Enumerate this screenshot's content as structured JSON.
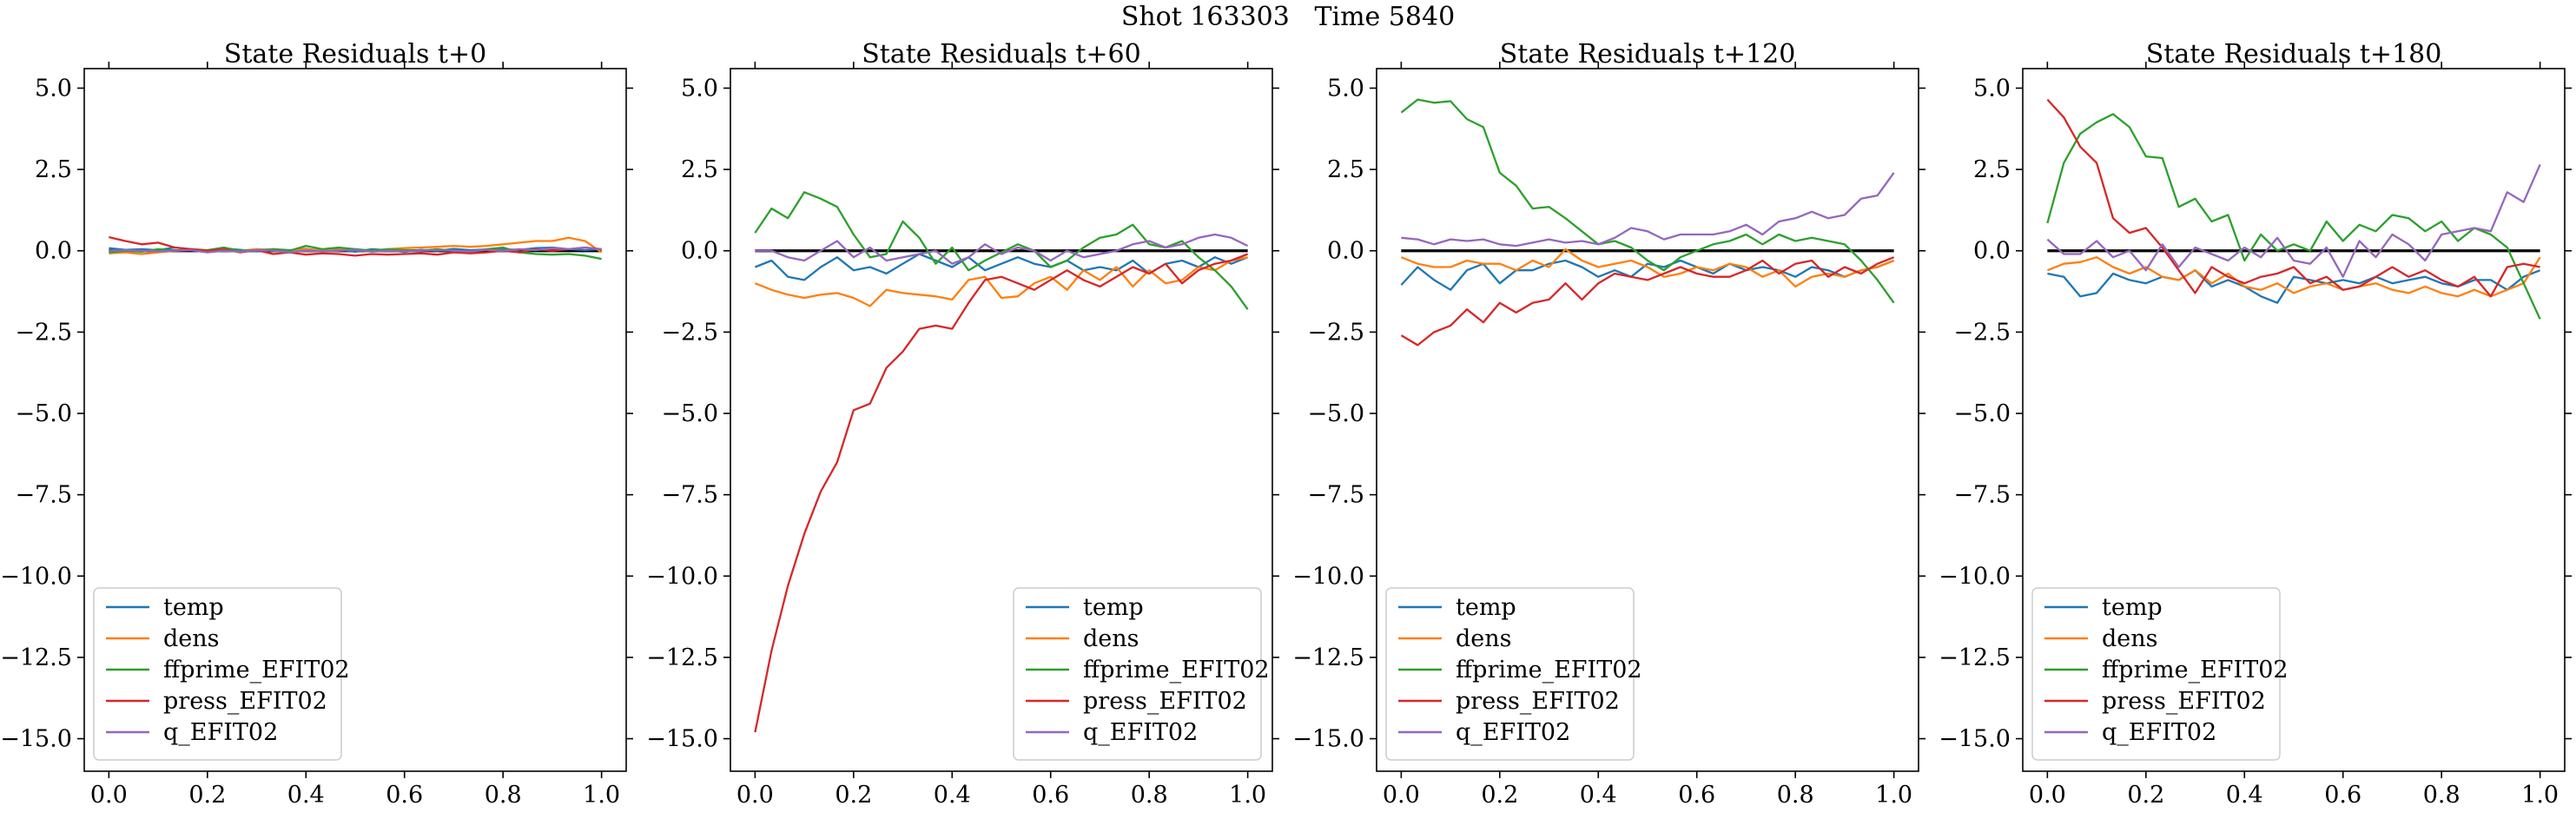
{
  "figure": {
    "suptitle": "Shot 163303   Time 5840"
  },
  "chart_data": [
    {
      "type": "line",
      "title": "State Residuals t+0",
      "xlim": [
        -0.05,
        1.05
      ],
      "ylim": [
        -16.0,
        5.6
      ],
      "xticks": [
        0.0,
        0.2,
        0.4,
        0.6,
        0.8,
        1.0
      ],
      "yticks": [
        5.0,
        2.5,
        0.0,
        -2.5,
        -5.0,
        -7.5,
        -10.0,
        -12.5,
        -15.0
      ],
      "x_tick_labels": [
        "0.0",
        "0.2",
        "0.4",
        "0.6",
        "0.8",
        "1.0"
      ],
      "y_tick_labels": [
        "5.0",
        "2.5",
        "0.0",
        "−2.5",
        "−5.0",
        "−7.5",
        "−10.0",
        "−12.5",
        "−15.0"
      ],
      "zero_line": true,
      "legend": "lower-left",
      "series": [
        {
          "name": "temp",
          "color": "#1f77b4",
          "values": [
            0.08,
            0.03,
            0.05,
            0.02,
            0.1,
            0.05,
            0.0,
            0.07,
            0.03,
            -0.02,
            0.05,
            0.02,
            0.06,
            0.0,
            0.04,
            -0.03,
            0.05,
            0.02,
            -0.04,
            0.03,
            0.0,
            0.06,
            0.02,
            0.04,
            0.05,
            0.03,
            0.08,
            0.1,
            0.05,
            0.02,
            0.05
          ]
        },
        {
          "name": "dens",
          "color": "#ff7f0e",
          "values": [
            -0.08,
            -0.05,
            -0.1,
            -0.05,
            0.0,
            0.03,
            -0.02,
            0.04,
            0.0,
            0.05,
            0.02,
            0.0,
            0.05,
            0.0,
            0.03,
            0.05,
            0.0,
            0.05,
            0.08,
            0.1,
            0.12,
            0.15,
            0.12,
            0.15,
            0.2,
            0.25,
            0.3,
            0.3,
            0.4,
            0.3,
            -0.05
          ]
        },
        {
          "name": "ffprime_EFIT02",
          "color": "#2ca02c",
          "values": [
            -0.05,
            0.0,
            -0.03,
            0.05,
            0.0,
            0.05,
            0.02,
            0.1,
            0.0,
            0.02,
            0.05,
            0.0,
            0.15,
            0.05,
            0.1,
            0.05,
            0.0,
            0.05,
            0.02,
            0.0,
            0.05,
            0.0,
            -0.02,
            0.05,
            0.1,
            -0.05,
            -0.1,
            -0.12,
            -0.1,
            -0.15,
            -0.25
          ]
        },
        {
          "name": "press_EFIT02",
          "color": "#d62728",
          "values": [
            0.42,
            0.3,
            0.2,
            0.25,
            0.1,
            0.05,
            0.0,
            0.05,
            -0.05,
            0.02,
            -0.1,
            -0.05,
            -0.12,
            -0.08,
            -0.1,
            -0.15,
            -0.1,
            -0.12,
            -0.1,
            -0.08,
            -0.12,
            -0.05,
            -0.08,
            -0.05,
            0.0,
            -0.05,
            0.05,
            0.0,
            0.05,
            0.1,
            0.05
          ]
        },
        {
          "name": "q_EFIT02",
          "color": "#9467bd",
          "values": [
            0.0,
            0.02,
            0.0,
            -0.02,
            0.0,
            0.02,
            -0.05,
            0.0,
            -0.03,
            0.02,
            0.0,
            -0.05,
            0.0,
            -0.02,
            0.0,
            0.03,
            -0.03,
            0.0,
            -0.02,
            0.0,
            0.02,
            0.0,
            -0.02,
            0.03,
            0.0,
            0.05,
            0.02,
            0.08,
            0.05,
            0.1,
            0.05
          ]
        }
      ]
    },
    {
      "type": "line",
      "title": "State Residuals t+60",
      "xlim": [
        -0.05,
        1.05
      ],
      "ylim": [
        -16.0,
        5.6
      ],
      "xticks": [
        0.0,
        0.2,
        0.4,
        0.6,
        0.8,
        1.0
      ],
      "yticks": [
        5.0,
        2.5,
        0.0,
        -2.5,
        -5.0,
        -7.5,
        -10.0,
        -12.5,
        -15.0
      ],
      "x_tick_labels": [
        "0.0",
        "0.2",
        "0.4",
        "0.6",
        "0.8",
        "1.0"
      ],
      "y_tick_labels": [
        "5.0",
        "2.5",
        "0.0",
        "−2.5",
        "−5.0",
        "−7.5",
        "−10.0",
        "−12.5",
        "−15.0"
      ],
      "zero_line": true,
      "legend": "lower-right",
      "series": [
        {
          "name": "temp",
          "color": "#1f77b4",
          "values": [
            -0.5,
            -0.3,
            -0.8,
            -0.9,
            -0.5,
            -0.2,
            -0.6,
            -0.5,
            -0.7,
            -0.4,
            -0.1,
            -0.3,
            -0.5,
            -0.2,
            -0.6,
            -0.4,
            -0.2,
            -0.4,
            -0.5,
            -0.3,
            -0.6,
            -0.5,
            -0.6,
            -0.3,
            -0.7,
            -0.4,
            -0.3,
            -0.5,
            -0.2,
            -0.4,
            -0.2
          ]
        },
        {
          "name": "dens",
          "color": "#ff7f0e",
          "values": [
            -1.0,
            -1.2,
            -1.35,
            -1.45,
            -1.35,
            -1.3,
            -1.45,
            -1.7,
            -1.2,
            -1.3,
            -1.35,
            -1.4,
            -1.5,
            -0.9,
            -0.8,
            -1.45,
            -1.4,
            -1.0,
            -0.8,
            -1.2,
            -0.6,
            -0.9,
            -0.5,
            -1.1,
            -0.6,
            -1.0,
            -0.9,
            -0.5,
            -0.6,
            -0.3,
            -0.2
          ]
        },
        {
          "name": "ffprime_EFIT02",
          "color": "#2ca02c",
          "values": [
            0.55,
            1.3,
            1.0,
            1.8,
            1.6,
            1.35,
            0.5,
            -0.2,
            -0.1,
            0.9,
            0.4,
            -0.4,
            0.1,
            -0.6,
            -0.3,
            -0.05,
            0.2,
            0.0,
            -0.5,
            -0.3,
            0.1,
            0.4,
            0.5,
            0.8,
            0.2,
            0.1,
            0.3,
            -0.2,
            -0.6,
            -1.1,
            -1.8
          ]
        },
        {
          "name": "press_EFIT02",
          "color": "#d62728",
          "values": [
            -14.8,
            -12.3,
            -10.3,
            -8.7,
            -7.4,
            -6.5,
            -4.9,
            -4.7,
            -3.6,
            -3.1,
            -2.4,
            -2.3,
            -2.4,
            -1.6,
            -0.9,
            -0.8,
            -1.0,
            -1.2,
            -0.9,
            -0.6,
            -0.9,
            -1.1,
            -0.8,
            -0.5,
            -0.7,
            -0.4,
            -1.0,
            -0.6,
            -0.4,
            -0.3,
            -0.1
          ]
        },
        {
          "name": "q_EFIT02",
          "color": "#9467bd",
          "values": [
            0.0,
            0.0,
            -0.2,
            -0.3,
            0.0,
            0.3,
            -0.2,
            0.1,
            -0.3,
            -0.2,
            -0.1,
            0.0,
            -0.4,
            -0.2,
            0.2,
            -0.1,
            0.1,
            0.0,
            -0.3,
            0.0,
            -0.2,
            -0.1,
            0.0,
            0.2,
            0.3,
            0.1,
            0.2,
            0.4,
            0.5,
            0.4,
            0.15
          ]
        }
      ]
    },
    {
      "type": "line",
      "title": "State Residuals t+120",
      "xlim": [
        -0.05,
        1.05
      ],
      "ylim": [
        -16.0,
        5.6
      ],
      "xticks": [
        0.0,
        0.2,
        0.4,
        0.6,
        0.8,
        1.0
      ],
      "yticks": [
        5.0,
        2.5,
        0.0,
        -2.5,
        -5.0,
        -7.5,
        -10.0,
        -12.5,
        -15.0
      ],
      "x_tick_labels": [
        "0.0",
        "0.2",
        "0.4",
        "0.6",
        "0.8",
        "1.0"
      ],
      "y_tick_labels": [
        "5.0",
        "2.5",
        "0.0",
        "−2.5",
        "−5.0",
        "−7.5",
        "−10.0",
        "−12.5",
        "−15.0"
      ],
      "zero_line": true,
      "legend": "lower-left",
      "series": [
        {
          "name": "temp",
          "color": "#1f77b4",
          "values": [
            -1.05,
            -0.5,
            -0.9,
            -1.2,
            -0.6,
            -0.4,
            -1.0,
            -0.6,
            -0.6,
            -0.4,
            -0.3,
            -0.5,
            -0.8,
            -0.6,
            -0.8,
            -0.4,
            -0.5,
            -0.3,
            -0.5,
            -0.7,
            -0.4,
            -0.6,
            -0.5,
            -0.6,
            -0.8,
            -0.5,
            -0.6,
            -0.8,
            -0.6,
            -0.5,
            -0.3
          ]
        },
        {
          "name": "dens",
          "color": "#ff7f0e",
          "values": [
            -0.2,
            -0.4,
            -0.5,
            -0.5,
            -0.3,
            -0.4,
            -0.4,
            -0.6,
            -0.3,
            -0.5,
            0.05,
            -0.3,
            -0.5,
            -0.4,
            -0.3,
            -0.5,
            -0.8,
            -0.7,
            -0.5,
            -0.6,
            -0.4,
            -0.5,
            -0.8,
            -0.6,
            -1.1,
            -0.8,
            -0.7,
            -0.8,
            -0.6,
            -0.5,
            -0.3
          ]
        },
        {
          "name": "ffprime_EFIT02",
          "color": "#2ca02c",
          "values": [
            4.25,
            4.65,
            4.55,
            4.6,
            4.05,
            3.8,
            2.4,
            2.0,
            1.3,
            1.35,
            1.0,
            0.6,
            0.2,
            0.3,
            0.1,
            -0.3,
            -0.6,
            -0.2,
            0.0,
            0.2,
            0.3,
            0.5,
            0.2,
            0.5,
            0.3,
            0.4,
            0.3,
            0.2,
            -0.3,
            -0.9,
            -1.6
          ]
        },
        {
          "name": "press_EFIT02",
          "color": "#d62728",
          "values": [
            -2.6,
            -2.9,
            -2.5,
            -2.3,
            -1.8,
            -2.2,
            -1.6,
            -1.9,
            -1.6,
            -1.5,
            -1.0,
            -1.5,
            -1.0,
            -0.7,
            -0.8,
            -0.9,
            -0.7,
            -0.5,
            -0.7,
            -0.8,
            -0.8,
            -0.6,
            -0.3,
            -0.7,
            -0.4,
            -0.3,
            -0.8,
            -0.5,
            -0.7,
            -0.4,
            -0.2
          ]
        },
        {
          "name": "q_EFIT02",
          "color": "#9467bd",
          "values": [
            0.4,
            0.35,
            0.2,
            0.35,
            0.3,
            0.35,
            0.2,
            0.15,
            0.25,
            0.35,
            0.25,
            0.3,
            0.2,
            0.4,
            0.7,
            0.6,
            0.35,
            0.5,
            0.5,
            0.5,
            0.6,
            0.8,
            0.5,
            0.9,
            1.0,
            1.2,
            1.0,
            1.1,
            1.6,
            1.7,
            2.4
          ]
        }
      ]
    },
    {
      "type": "line",
      "title": "State Residuals t+180",
      "xlim": [
        -0.05,
        1.05
      ],
      "ylim": [
        -16.0,
        5.6
      ],
      "xticks": [
        0.0,
        0.2,
        0.4,
        0.6,
        0.8,
        1.0
      ],
      "yticks": [
        5.0,
        2.5,
        0.0,
        -2.5,
        -5.0,
        -7.5,
        -10.0,
        -12.5,
        -15.0
      ],
      "x_tick_labels": [
        "0.0",
        "0.2",
        "0.4",
        "0.6",
        "0.8",
        "1.0"
      ],
      "y_tick_labels": [
        "5.0",
        "2.5",
        "0.0",
        "−2.5",
        "−5.0",
        "−7.5",
        "−10.0",
        "−12.5",
        "−15.0"
      ],
      "zero_line": true,
      "legend": "lower-left",
      "series": [
        {
          "name": "temp",
          "color": "#1f77b4",
          "values": [
            -0.7,
            -0.8,
            -1.4,
            -1.3,
            -0.7,
            -0.9,
            -1.0,
            -0.8,
            -0.9,
            -0.6,
            -1.1,
            -0.9,
            -1.1,
            -1.4,
            -1.6,
            -0.8,
            -0.9,
            -1.0,
            -0.9,
            -1.0,
            -0.8,
            -1.0,
            -0.9,
            -0.8,
            -1.0,
            -1.1,
            -0.9,
            -0.9,
            -1.2,
            -0.8,
            -0.6
          ]
        },
        {
          "name": "dens",
          "color": "#ff7f0e",
          "values": [
            -0.6,
            -0.4,
            -0.35,
            -0.2,
            -0.5,
            -0.7,
            -0.5,
            -0.8,
            -0.9,
            -0.6,
            -1.0,
            -0.7,
            -1.1,
            -1.2,
            -1.0,
            -1.3,
            -1.1,
            -1.0,
            -1.2,
            -1.1,
            -1.0,
            -1.2,
            -1.3,
            -1.1,
            -1.3,
            -1.4,
            -1.2,
            -1.4,
            -1.2,
            -1.0,
            -0.2
          ]
        },
        {
          "name": "ffprime_EFIT02",
          "color": "#2ca02c",
          "values": [
            0.85,
            2.7,
            3.6,
            3.95,
            4.2,
            3.8,
            2.9,
            2.85,
            1.35,
            1.6,
            0.9,
            1.1,
            -0.3,
            0.5,
            0.0,
            0.2,
            0.0,
            0.9,
            0.3,
            0.8,
            0.6,
            1.1,
            1.0,
            0.6,
            0.9,
            0.3,
            0.7,
            0.5,
            0.1,
            -1.0,
            -2.1
          ]
        },
        {
          "name": "press_EFIT02",
          "color": "#d62728",
          "values": [
            4.65,
            4.1,
            3.2,
            2.7,
            1.0,
            0.55,
            0.7,
            0.1,
            -0.6,
            -1.3,
            -0.5,
            -0.8,
            -1.0,
            -0.8,
            -0.7,
            -0.5,
            -1.0,
            -0.8,
            -1.2,
            -1.1,
            -0.8,
            -0.5,
            -0.8,
            -0.6,
            -0.9,
            -1.1,
            -0.8,
            -1.4,
            -0.5,
            -0.4,
            -0.5
          ]
        },
        {
          "name": "q_EFIT02",
          "color": "#9467bd",
          "values": [
            0.35,
            -0.1,
            -0.1,
            0.3,
            -0.2,
            0.0,
            -0.6,
            0.2,
            -0.5,
            0.1,
            -0.1,
            -0.3,
            0.1,
            -0.2,
            0.4,
            -0.3,
            -0.4,
            0.1,
            -0.8,
            0.3,
            -0.2,
            0.5,
            0.2,
            -0.3,
            0.5,
            0.6,
            0.7,
            0.6,
            1.8,
            1.5,
            2.65
          ]
        }
      ]
    }
  ]
}
